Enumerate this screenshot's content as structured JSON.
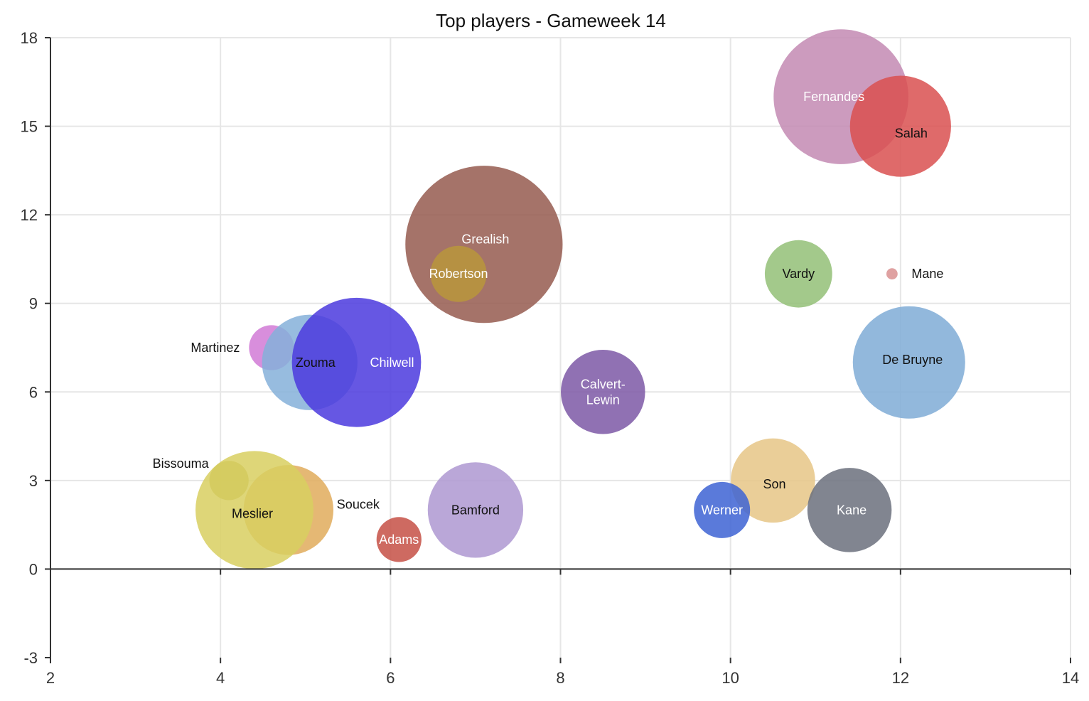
{
  "chart_data": {
    "type": "scatter",
    "subtype": "bubble",
    "title": "Top players - Gameweek 14",
    "xlabel": "",
    "ylabel": "",
    "xlim": [
      2,
      14
    ],
    "ylim": [
      -3,
      18
    ],
    "x_ticks": [
      2,
      4,
      6,
      8,
      10,
      12,
      14
    ],
    "y_ticks": [
      -3,
      0,
      3,
      6,
      9,
      12,
      15,
      18
    ],
    "grid": true,
    "legend": "none",
    "points": [
      {
        "label": "Fernandes",
        "x": 11.3,
        "y": 16.0,
        "size": 24,
        "color": "#c38ab3",
        "label_color": "#ffffff",
        "label_dx": -10,
        "label_dy": 0
      },
      {
        "label": "Salah",
        "x": 12.0,
        "y": 15.0,
        "size": 18,
        "color": "#d95050",
        "label_color": "#111111",
        "label_dx": 15,
        "label_dy": 10
      },
      {
        "label": "Grealish",
        "x": 7.1,
        "y": 11.0,
        "size": 28,
        "color": "#955a4f",
        "label_color": "#ffffff",
        "label_dx": 2,
        "label_dy": -7
      },
      {
        "label": "Robertson",
        "x": 6.8,
        "y": 10.0,
        "size": 10,
        "color": "#b8973c",
        "label_color": "#ffffff",
        "label_dx": 0,
        "label_dy": 0
      },
      {
        "label": "Vardy",
        "x": 10.8,
        "y": 10.0,
        "size": 12,
        "color": "#93bf77",
        "label_color": "#111111",
        "label_dx": 0,
        "label_dy": 0
      },
      {
        "label": "Mane",
        "x": 11.9,
        "y": 10.0,
        "size": 2,
        "color": "#d99090",
        "label_color": "#111111",
        "label_dx": 50,
        "label_dy": 0
      },
      {
        "label": "Martinez",
        "x": 4.6,
        "y": 7.5,
        "size": 8,
        "color": "#d17ad6",
        "label_color": "#111111",
        "label_dx": -79,
        "label_dy": 0
      },
      {
        "label": "Zouma",
        "x": 5.05,
        "y": 7.0,
        "size": 17,
        "color": "#85b0d9",
        "label_color": "#111111",
        "label_dx": 8,
        "label_dy": 0
      },
      {
        "label": "Chilwell",
        "x": 5.6,
        "y": 7.0,
        "size": 23,
        "color": "#4b39de",
        "label_color": "#ffffff",
        "label_dx": 50,
        "label_dy": 0
      },
      {
        "label": "Calvert-Lewin",
        "x": 8.5,
        "y": 6.0,
        "size": 15,
        "color": "#7d58a6",
        "label_color": "#ffffff",
        "label_dx": 0,
        "label_dy": 0
      },
      {
        "label": "De Bruyne",
        "x": 12.1,
        "y": 7.0,
        "size": 20,
        "color": "#7fabd6",
        "label_color": "#111111",
        "label_dx": 5,
        "label_dy": -4
      },
      {
        "label": "Bissouma",
        "x": 4.1,
        "y": 3.0,
        "size": 7,
        "color": "#b7b24a",
        "label_color": "#111111",
        "label_dx": -68,
        "label_dy": -24
      },
      {
        "label": "Soucek",
        "x": 4.8,
        "y": 2.0,
        "size": 16,
        "color": "#e0ac5c",
        "label_color": "#111111",
        "label_dx": 98,
        "label_dy": -8
      },
      {
        "label": "Meslier",
        "x": 4.4,
        "y": 2.0,
        "size": 21,
        "color": "#d8cf60",
        "label_color": "#111111",
        "label_dx": -3,
        "label_dy": 5
      },
      {
        "label": "Adams",
        "x": 6.1,
        "y": 1.0,
        "size": 8,
        "color": "#c65045",
        "label_color": "#ffffff",
        "label_dx": 0,
        "label_dy": 0
      },
      {
        "label": "Bamford",
        "x": 7.0,
        "y": 2.0,
        "size": 17,
        "color": "#ae98d1",
        "label_color": "#111111",
        "label_dx": 0,
        "label_dy": 0
      },
      {
        "label": "Son",
        "x": 10.5,
        "y": 3.0,
        "size": 15,
        "color": "#e6c586",
        "label_color": "#111111",
        "label_dx": 2,
        "label_dy": 5
      },
      {
        "label": "Werner",
        "x": 9.9,
        "y": 2.0,
        "size": 10,
        "color": "#3d63d4",
        "label_color": "#ffffff",
        "label_dx": 0,
        "label_dy": 0
      },
      {
        "label": "Kane",
        "x": 11.4,
        "y": 2.0,
        "size": 15,
        "color": "#6b707c",
        "label_color": "#ffffff",
        "label_dx": 3,
        "label_dy": 0
      }
    ]
  }
}
